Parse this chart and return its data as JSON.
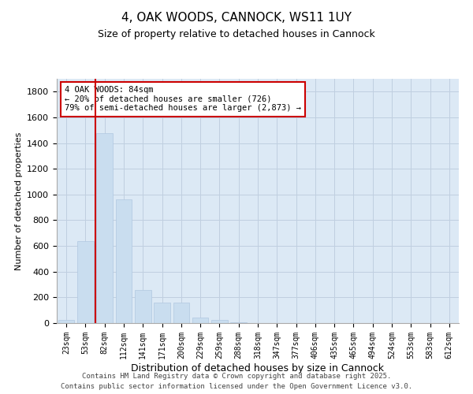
{
  "title": "4, OAK WOODS, CANNOCK, WS11 1UY",
  "subtitle": "Size of property relative to detached houses in Cannock",
  "xlabel": "Distribution of detached houses by size in Cannock",
  "ylabel": "Number of detached properties",
  "categories": [
    "23sqm",
    "53sqm",
    "82sqm",
    "112sqm",
    "141sqm",
    "171sqm",
    "200sqm",
    "229sqm",
    "259sqm",
    "288sqm",
    "318sqm",
    "347sqm",
    "377sqm",
    "406sqm",
    "435sqm",
    "465sqm",
    "494sqm",
    "524sqm",
    "553sqm",
    "583sqm",
    "612sqm"
  ],
  "values": [
    25,
    640,
    1480,
    960,
    260,
    160,
    160,
    45,
    25,
    8,
    3,
    2,
    1,
    1,
    0,
    0,
    0,
    0,
    0,
    0,
    0
  ],
  "bar_color": "#c9ddef",
  "bar_edge_color": "#b0c8e0",
  "annotation_line1": "4 OAK WOODS: 84sqm",
  "annotation_line2": "← 20% of detached houses are smaller (726)",
  "annotation_line3": "79% of semi-detached houses are larger (2,873) →",
  "annotation_box_color": "#ffffff",
  "annotation_box_edgecolor": "#cc0000",
  "red_line_color": "#cc0000",
  "ylim": [
    0,
    1900
  ],
  "yticks": [
    0,
    200,
    400,
    600,
    800,
    1000,
    1200,
    1400,
    1600,
    1800
  ],
  "grid_color": "#c0cfe0",
  "background_color": "#dce9f5",
  "footer_line1": "Contains HM Land Registry data © Crown copyright and database right 2025.",
  "footer_line2": "Contains public sector information licensed under the Open Government Licence v3.0."
}
